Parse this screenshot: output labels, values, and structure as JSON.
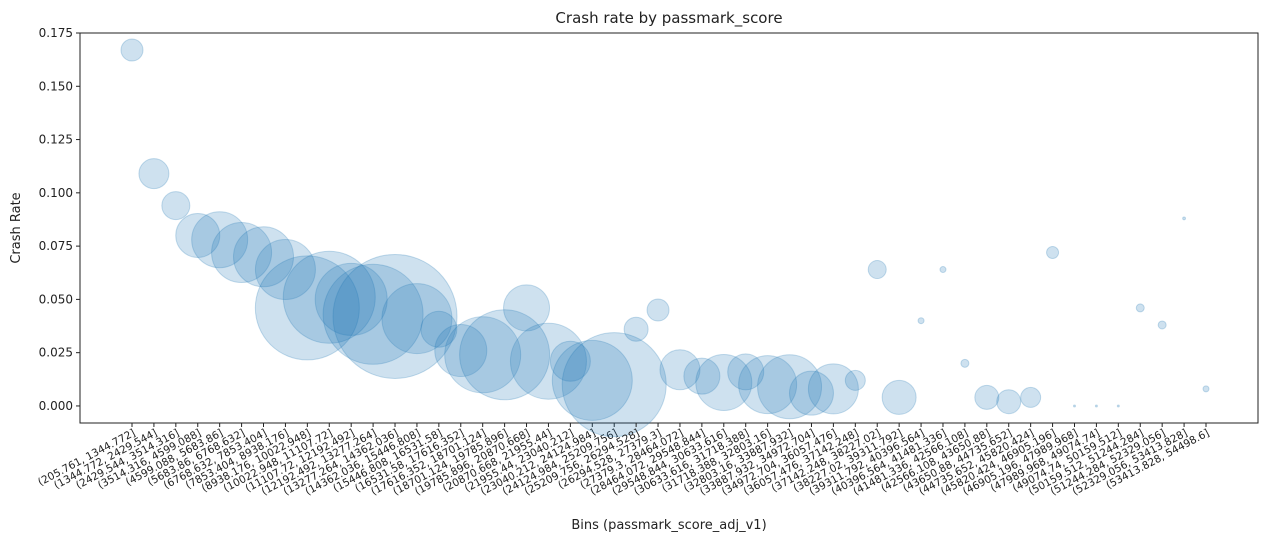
{
  "chart_data": {
    "type": "bubble",
    "title": "Crash rate by passmark_score",
    "x_label": "Bins (passmark_score_adj_v1)",
    "y_label": "Crash Rate",
    "categories": [
      "(205.761, 1344.772]",
      "(1344.772, 2429.544]",
      "(2429.544, 3514.316]",
      "(3514.316, 4599.088]",
      "(4599.088, 5683.86]",
      "(5683.86, 6768.632]",
      "(6768.632, 7853.404]",
      "(7853.404, 8938.176]",
      "(8938.176, 10022.948]",
      "(10022.948, 11107.72]",
      "(11107.72, 12192.492]",
      "(12192.492, 13277.264]",
      "(13277.264, 14362.036]",
      "(14362.036, 15446.808]",
      "(15446.808, 16531.58]",
      "(16531.58, 17616.352]",
      "(17616.352, 18701.124]",
      "(18701.124, 19785.896]",
      "(19785.896, 20870.668]",
      "(20870.668, 21955.44]",
      "(21955.44, 23040.212]",
      "(23040.212, 24124.984]",
      "(24124.984, 25209.756]",
      "(25209.756, 26294.528]",
      "(26294.528, 27379.3]",
      "(27379.3, 28464.072]",
      "(28464.072, 29548.844]",
      "(29548.844, 30633.616]",
      "(30633.616, 31718.388]",
      "(31718.388, 32803.16]",
      "(32803.16, 33887.932]",
      "(33887.932, 34972.704]",
      "(34972.704, 36057.476]",
      "(36057.476, 37142.248]",
      "(37142.248, 38227.02]",
      "(38227.02, 39311.792]",
      "(39311.792, 40396.564]",
      "(40396.564, 41481.336]",
      "(41481.336, 42566.108]",
      "(42566.108, 43650.88]",
      "(43650.88, 44735.652]",
      "(44735.652, 45820.424]",
      "(45820.424, 46905.196]",
      "(46905.196, 47989.968]",
      "(47989.968, 49074.74]",
      "(49074.74, 50159.512]",
      "(50159.512, 51244.284]",
      "(51244.284, 52329.056]",
      "(52329.056, 53413.828]",
      "(53413.828, 54498.6]"
    ],
    "values": [
      0.167,
      0.109,
      0.094,
      0.08,
      0.078,
      0.072,
      0.07,
      0.064,
      0.046,
      0.051,
      0.05,
      0.043,
      0.042,
      0.041,
      0.036,
      0.026,
      0.024,
      0.024,
      0.046,
      0.021,
      0.021,
      0.012,
      0.01,
      0.036,
      0.045,
      0.017,
      0.014,
      0.011,
      0.016,
      0.01,
      0.009,
      0.006,
      0.008,
      0.012,
      0.064,
      0.004,
      0.04,
      0.064,
      0.02,
      0.004,
      0.002,
      0.004,
      0.072,
      0,
      0,
      0,
      0.046,
      0.038,
      0.088,
      0.008
    ],
    "sizes": [
      121,
      225,
      196,
      484,
      784,
      900,
      900,
      900,
      2704,
      2116,
      1296,
      2500,
      3844,
      1225,
      324,
      676,
      1444,
      2025,
      529,
      1444,
      400,
      1600,
      2704,
      144,
      121,
      400,
      324,
      784,
      324,
      841,
      1024,
      484,
      625,
      100,
      81,
      289,
      9,
      9,
      16,
      144,
      144,
      100,
      36,
      1,
      1,
      1,
      16,
      16,
      2,
      9
    ],
    "color": "#1f77b4",
    "ylim": [
      -0.008,
      0.175
    ],
    "yticks": [
      {
        "value": 0,
        "label": "0.000"
      },
      0.025,
      {
        "value": 0.05,
        "label": "0.050"
      },
      0.075,
      {
        "value": 0.1,
        "label": "0.100"
      },
      0.125,
      {
        "value": 0.15,
        "label": "0.150"
      },
      0.175
    ]
  }
}
